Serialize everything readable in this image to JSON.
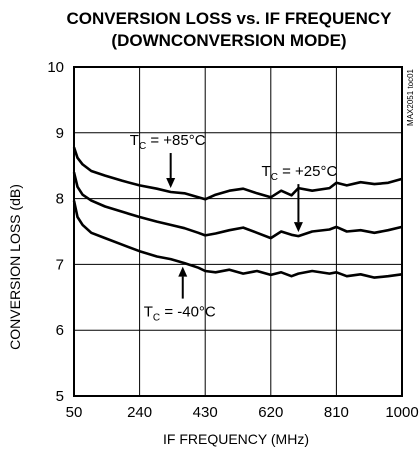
{
  "chart_data": {
    "type": "line",
    "title": "CONVERSION LOSS vs. IF FREQUENCY",
    "subtitle": "(DOWNCONVERSION MODE)",
    "xlabel": "IF FREQUENCY (MHz)",
    "ylabel": "CONVERSION LOSS (dB)",
    "xlim": [
      50,
      1000
    ],
    "ylim": [
      5,
      10
    ],
    "xticks": [
      50,
      240,
      430,
      620,
      810,
      1000
    ],
    "yticks": [
      5,
      6,
      7,
      8,
      9,
      10
    ],
    "grid": true,
    "side_code": "MAX2051 toc01",
    "series": [
      {
        "name": "+85°C",
        "x": [
          50,
          60,
          75,
          100,
          140,
          190,
          240,
          290,
          330,
          370,
          410,
          430,
          460,
          500,
          540,
          580,
          620,
          650,
          680,
          700,
          740,
          790,
          810,
          840,
          880,
          920,
          960,
          1000
        ],
        "y": [
          8.78,
          8.62,
          8.52,
          8.42,
          8.35,
          8.27,
          8.2,
          8.15,
          8.1,
          8.08,
          8.02,
          7.99,
          8.06,
          8.12,
          8.15,
          8.08,
          8.02,
          8.12,
          8.05,
          8.16,
          8.12,
          8.16,
          8.24,
          8.2,
          8.25,
          8.22,
          8.24,
          8.3
        ]
      },
      {
        "name": "+25°C",
        "x": [
          50,
          60,
          75,
          100,
          140,
          190,
          240,
          290,
          330,
          370,
          410,
          430,
          460,
          500,
          540,
          580,
          620,
          650,
          680,
          700,
          740,
          790,
          810,
          840,
          880,
          920,
          960,
          1000
        ],
        "y": [
          8.4,
          8.18,
          8.06,
          7.97,
          7.88,
          7.8,
          7.72,
          7.65,
          7.6,
          7.55,
          7.48,
          7.44,
          7.47,
          7.52,
          7.56,
          7.48,
          7.4,
          7.5,
          7.45,
          7.43,
          7.5,
          7.53,
          7.57,
          7.5,
          7.52,
          7.48,
          7.52,
          7.57
        ]
      },
      {
        "name": "-40°C",
        "x": [
          50,
          60,
          75,
          100,
          140,
          190,
          240,
          290,
          330,
          370,
          410,
          430,
          460,
          500,
          540,
          580,
          620,
          650,
          680,
          700,
          740,
          790,
          810,
          840,
          880,
          920,
          960,
          1000
        ],
        "y": [
          7.97,
          7.72,
          7.6,
          7.48,
          7.4,
          7.3,
          7.2,
          7.12,
          7.08,
          7.02,
          6.95,
          6.9,
          6.88,
          6.92,
          6.86,
          6.9,
          6.84,
          6.88,
          6.82,
          6.86,
          6.9,
          6.86,
          6.88,
          6.82,
          6.85,
          6.8,
          6.82,
          6.85
        ]
      }
    ],
    "annotations": [
      {
        "prefix": "T",
        "sub": "C",
        "text": " = +85°C",
        "series": 0,
        "arrow_x": 330
      },
      {
        "prefix": "T",
        "sub": "C",
        "text": " = +25°C",
        "series": 1,
        "arrow_x": 700
      },
      {
        "prefix": "T",
        "sub": "C",
        "text": " = -40°C",
        "series": 2,
        "arrow_x": 365
      }
    ]
  }
}
